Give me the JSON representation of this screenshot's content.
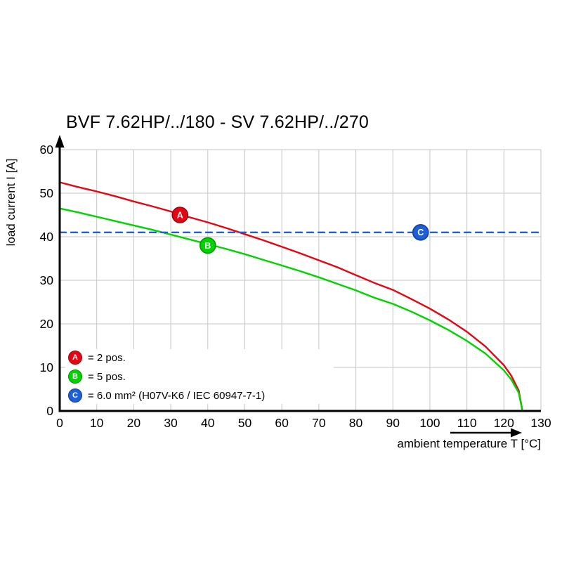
{
  "chart_data": {
    "type": "line",
    "title": "BVF 7.62HP/../180 - SV 7.62HP/../270",
    "xlabel": "ambient temperature T [°C]",
    "ylabel": "load current I [A]",
    "xlim": [
      0,
      130
    ],
    "ylim": [
      0,
      60
    ],
    "xticks": [
      0,
      10,
      20,
      30,
      40,
      50,
      60,
      70,
      80,
      90,
      100,
      110,
      120,
      130
    ],
    "yticks": [
      0,
      10,
      20,
      30,
      40,
      50,
      60
    ],
    "grid": true,
    "grid_color": "#c6c6c6",
    "axis_color": "#000000",
    "legend_position": "lower-left-inside",
    "series": [
      {
        "id": "A",
        "legend_label": "= 2 pos.",
        "color": "#e30613",
        "stroke_dark": "#9c0410",
        "style": "solid",
        "x": [
          0,
          5,
          10,
          15,
          20,
          25,
          30,
          35,
          40,
          45,
          50,
          55,
          60,
          65,
          70,
          75,
          80,
          85,
          90,
          95,
          100,
          105,
          110,
          115,
          120,
          122,
          124,
          125
        ],
        "y": [
          52.5,
          51.4,
          50.4,
          49.3,
          48.1,
          47.0,
          45.8,
          44.5,
          43.3,
          42.0,
          40.6,
          39.2,
          37.7,
          36.2,
          34.6,
          33.0,
          31.2,
          29.4,
          27.8,
          25.7,
          23.5,
          21.0,
          18.2,
          14.8,
          10.5,
          8.1,
          4.7,
          0
        ]
      },
      {
        "id": "B",
        "legend_label": "= 5 pos.",
        "color": "#00d300",
        "stroke_dark": "#009400",
        "style": "solid",
        "x": [
          0,
          5,
          10,
          15,
          20,
          25,
          30,
          35,
          40,
          45,
          50,
          55,
          60,
          65,
          70,
          75,
          80,
          85,
          90,
          95,
          100,
          105,
          110,
          115,
          120,
          122,
          124,
          125
        ],
        "y": [
          46.5,
          45.6,
          44.6,
          43.6,
          42.6,
          41.6,
          40.5,
          39.4,
          38.3,
          37.2,
          36.0,
          34.7,
          33.4,
          32.1,
          30.7,
          29.2,
          27.7,
          26.0,
          24.6,
          22.8,
          20.8,
          18.6,
          16.1,
          13.2,
          9.3,
          7.2,
          4.2,
          0
        ]
      },
      {
        "id": "C",
        "legend_label": "= 6.0 mm² (H07V-K6 / IEC 60947-7-1)",
        "color": "#1e5ed9",
        "stroke_dark": "#123f9e",
        "style": "dashed",
        "x": [
          0,
          130
        ],
        "y": [
          41,
          41
        ]
      }
    ],
    "markers": [
      {
        "id": "A",
        "x": 32.5,
        "y": 45
      },
      {
        "id": "B",
        "x": 40,
        "y": 38
      },
      {
        "id": "C",
        "x": 97.5,
        "y": 41
      }
    ]
  }
}
